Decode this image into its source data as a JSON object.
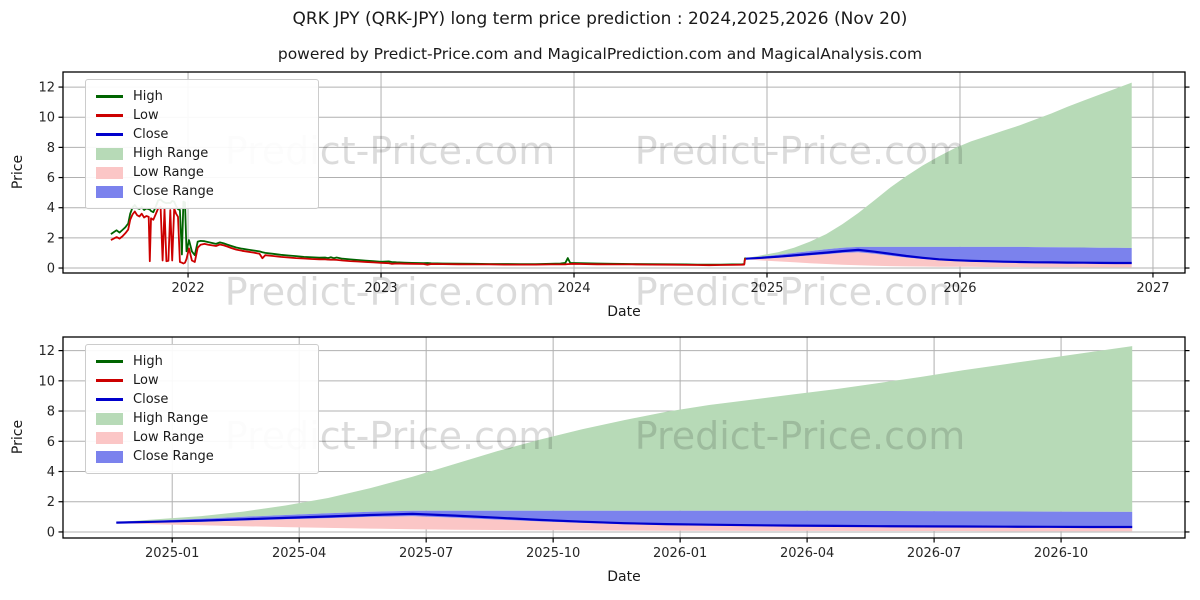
{
  "title": "QRK JPY (QRK-JPY) long term price prediction : 2024,2025,2026 (Nov 20)",
  "subtitle": "powered by Predict-Price.com and MagicalPrediction.com and MagicalAnalysis.com",
  "watermark": "Predict-Price.com",
  "legend": [
    "High",
    "Low",
    "Close",
    "High Range",
    "Low Range",
    "Close Range"
  ],
  "colors": {
    "high_line": "#006400",
    "low_line": "#cc0000",
    "close_line": "#0000cc",
    "high_range_fill": "#b7dab7",
    "low_range_fill": "#fbc6c6",
    "close_range_fill": "#7b82ed",
    "grid": "#b0b0b0",
    "frame": "#000000",
    "text": "#262626"
  },
  "chart_data": [
    {
      "type": "area",
      "name": "top-chart",
      "xlabel": "Date",
      "ylabel": "Price",
      "grid": true,
      "legend_position": "upper left",
      "xlim": [
        2021.352,
        2027.166
      ],
      "ylim": [
        -0.33,
        13.0
      ],
      "x_ticks": [
        {
          "v": 2022,
          "label": "2022"
        },
        {
          "v": 2023,
          "label": "2023"
        },
        {
          "v": 2024,
          "label": "2024"
        },
        {
          "v": 2025,
          "label": "2025"
        },
        {
          "v": 2026,
          "label": "2026"
        },
        {
          "v": 2027,
          "label": "2027"
        }
      ],
      "y_ticks": [
        0,
        2,
        4,
        6,
        8,
        10,
        12
      ],
      "series_used": [
        "history",
        "forecast"
      ]
    },
    {
      "type": "area",
      "name": "bottom-chart",
      "xlabel": "Date",
      "ylabel": "Price",
      "grid": true,
      "legend_position": "upper left",
      "xlim": [
        2024.785,
        2026.994
      ],
      "ylim": [
        -0.4,
        12.9
      ],
      "x_ticks": [
        {
          "v": 2025.0,
          "label": "2025-01"
        },
        {
          "v": 2025.25,
          "label": "2025-04"
        },
        {
          "v": 2025.5,
          "label": "2025-07"
        },
        {
          "v": 2025.75,
          "label": "2025-10"
        },
        {
          "v": 2026.0,
          "label": "2026-01"
        },
        {
          "v": 2026.25,
          "label": "2026-04"
        },
        {
          "v": 2026.5,
          "label": "2026-07"
        },
        {
          "v": 2026.75,
          "label": "2026-10"
        }
      ],
      "y_ticks": [
        0,
        2,
        4,
        6,
        8,
        10,
        12
      ],
      "series_used": [
        "forecast"
      ]
    }
  ],
  "forecast": {
    "x": [
      2024.89,
      2024.973,
      2025.057,
      2025.14,
      2025.223,
      2025.307,
      2025.39,
      2025.473,
      2025.557,
      2025.64,
      2025.723,
      2025.807,
      2025.89,
      2025.973,
      2026.057,
      2026.14,
      2026.223,
      2026.307,
      2026.39,
      2026.473,
      2026.557,
      2026.64,
      2026.723,
      2026.807,
      2026.89
    ],
    "close": [
      0.62,
      0.68,
      0.75,
      0.84,
      0.93,
      1.02,
      1.12,
      1.2,
      1.08,
      0.94,
      0.8,
      0.68,
      0.58,
      0.52,
      0.48,
      0.45,
      0.42,
      0.4,
      0.38,
      0.37,
      0.36,
      0.35,
      0.34,
      0.33,
      0.33
    ],
    "close_top": [
      0.62,
      0.76,
      0.88,
      1.0,
      1.12,
      1.24,
      1.34,
      1.4,
      1.4,
      1.4,
      1.4,
      1.4,
      1.4,
      1.4,
      1.4,
      1.4,
      1.4,
      1.4,
      1.39,
      1.38,
      1.37,
      1.36,
      1.35,
      1.34,
      1.33
    ],
    "close_bottom": [
      0.6,
      0.63,
      0.68,
      0.76,
      0.84,
      0.92,
      1.0,
      1.05,
      0.95,
      0.82,
      0.7,
      0.6,
      0.51,
      0.46,
      0.42,
      0.39,
      0.37,
      0.35,
      0.34,
      0.33,
      0.32,
      0.31,
      0.3,
      0.3,
      0.29
    ],
    "low_bottom": [
      0.58,
      0.5,
      0.44,
      0.38,
      0.32,
      0.27,
      0.22,
      0.18,
      0.15,
      0.13,
      0.11,
      0.1,
      0.09,
      0.08,
      0.08,
      0.07,
      0.07,
      0.07,
      0.06,
      0.06,
      0.06,
      0.05,
      0.05,
      0.05,
      0.05
    ],
    "high_top": [
      0.65,
      0.85,
      1.05,
      1.35,
      1.75,
      2.25,
      2.9,
      3.65,
      4.5,
      5.35,
      6.1,
      6.8,
      7.4,
      7.95,
      8.4,
      8.75,
      9.1,
      9.45,
      9.85,
      10.25,
      10.7,
      11.1,
      11.5,
      11.9,
      12.3
    ]
  },
  "history": {
    "columns": [
      "year",
      "low",
      "high"
    ],
    "points": [
      [
        2021.6,
        1.85,
        2.25
      ],
      [
        2021.615,
        1.95,
        2.38
      ],
      [
        2021.63,
        2.05,
        2.5
      ],
      [
        2021.645,
        1.95,
        2.35
      ],
      [
        2021.66,
        2.1,
        2.52
      ],
      [
        2021.675,
        2.3,
        2.7
      ],
      [
        2021.69,
        2.55,
        2.95
      ],
      [
        2021.7,
        3.2,
        3.6
      ],
      [
        2021.712,
        3.55,
        4.0
      ],
      [
        2021.724,
        3.75,
        4.18
      ],
      [
        2021.736,
        3.5,
        3.98
      ],
      [
        2021.748,
        3.42,
        3.92
      ],
      [
        2021.76,
        3.6,
        4.05
      ],
      [
        2021.772,
        3.35,
        3.85
      ],
      [
        2021.784,
        3.45,
        3.95
      ],
      [
        2021.796,
        3.4,
        3.9
      ],
      [
        2021.802,
        0.45,
        3.88
      ],
      [
        2021.808,
        3.3,
        3.78
      ],
      [
        2021.82,
        3.2,
        3.7
      ],
      [
        2021.832,
        3.55,
        4.05
      ],
      [
        2021.845,
        3.95,
        4.48
      ],
      [
        2021.858,
        4.05,
        4.55
      ],
      [
        2021.868,
        0.5,
        4.42
      ],
      [
        2021.878,
        3.9,
        4.35
      ],
      [
        2021.888,
        0.45,
        4.3
      ],
      [
        2021.898,
        0.48,
        4.32
      ],
      [
        2021.908,
        3.85,
        4.3
      ],
      [
        2021.918,
        0.5,
        4.45
      ],
      [
        2021.928,
        3.95,
        4.4
      ],
      [
        2021.938,
        3.6,
        4.1
      ],
      [
        2021.948,
        3.4,
        3.9
      ],
      [
        2021.958,
        0.4,
        3.85
      ],
      [
        2021.968,
        0.35,
        0.9
      ],
      [
        2021.976,
        0.3,
        4.4
      ],
      [
        2021.984,
        0.35,
        4.35
      ],
      [
        2021.992,
        0.6,
        1.1
      ],
      [
        2022.005,
        1.3,
        1.85
      ],
      [
        2022.02,
        0.5,
        1.1
      ],
      [
        2022.035,
        0.4,
        0.85
      ],
      [
        2022.05,
        1.35,
        1.75
      ],
      [
        2022.065,
        1.55,
        1.8
      ],
      [
        2022.085,
        1.6,
        1.78
      ],
      [
        2022.105,
        1.55,
        1.72
      ],
      [
        2022.125,
        1.5,
        1.66
      ],
      [
        2022.145,
        1.46,
        1.6
      ],
      [
        2022.165,
        1.56,
        1.7
      ],
      [
        2022.185,
        1.5,
        1.63
      ],
      [
        2022.205,
        1.42,
        1.55
      ],
      [
        2022.225,
        1.32,
        1.46
      ],
      [
        2022.25,
        1.22,
        1.36
      ],
      [
        2022.28,
        1.14,
        1.28
      ],
      [
        2022.31,
        1.08,
        1.22
      ],
      [
        2022.34,
        1.02,
        1.16
      ],
      [
        2022.37,
        0.95,
        1.1
      ],
      [
        2022.385,
        0.65,
        1.05
      ],
      [
        2022.4,
        0.85,
        1.0
      ],
      [
        2022.44,
        0.8,
        0.94
      ],
      [
        2022.48,
        0.74,
        0.88
      ],
      [
        2022.52,
        0.7,
        0.83
      ],
      [
        2022.56,
        0.66,
        0.79
      ],
      [
        2022.6,
        0.63,
        0.74
      ],
      [
        2022.64,
        0.6,
        0.71
      ],
      [
        2022.68,
        0.58,
        0.69
      ],
      [
        2022.71,
        0.57,
        0.7
      ],
      [
        2022.725,
        0.56,
        0.66
      ],
      [
        2022.74,
        0.55,
        0.72
      ],
      [
        2022.755,
        0.55,
        0.65
      ],
      [
        2022.77,
        0.54,
        0.7
      ],
      [
        2022.8,
        0.5,
        0.62
      ],
      [
        2022.84,
        0.46,
        0.57
      ],
      [
        2022.88,
        0.43,
        0.53
      ],
      [
        2022.92,
        0.4,
        0.49
      ],
      [
        2022.96,
        0.37,
        0.45
      ],
      [
        2023.0,
        0.34,
        0.41
      ],
      [
        2023.04,
        0.32,
        0.44
      ],
      [
        2023.055,
        0.28,
        0.4
      ],
      [
        2023.08,
        0.3,
        0.38
      ],
      [
        2023.12,
        0.29,
        0.36
      ],
      [
        2023.16,
        0.28,
        0.34
      ],
      [
        2023.22,
        0.27,
        0.32
      ],
      [
        2023.24,
        0.22,
        0.33
      ],
      [
        2023.26,
        0.27,
        0.31
      ],
      [
        2023.32,
        0.26,
        0.3
      ],
      [
        2023.4,
        0.25,
        0.29
      ],
      [
        2023.48,
        0.24,
        0.28
      ],
      [
        2023.56,
        0.24,
        0.27
      ],
      [
        2023.64,
        0.23,
        0.27
      ],
      [
        2023.72,
        0.23,
        0.26
      ],
      [
        2023.8,
        0.23,
        0.26
      ],
      [
        2023.88,
        0.24,
        0.28
      ],
      [
        2023.93,
        0.24,
        0.3
      ],
      [
        2023.955,
        0.25,
        0.34
      ],
      [
        2023.968,
        0.26,
        0.66
      ],
      [
        2023.98,
        0.27,
        0.34
      ],
      [
        2024.0,
        0.28,
        0.33
      ],
      [
        2024.06,
        0.26,
        0.31
      ],
      [
        2024.12,
        0.25,
        0.3
      ],
      [
        2024.2,
        0.24,
        0.28
      ],
      [
        2024.3,
        0.24,
        0.27
      ],
      [
        2024.4,
        0.23,
        0.26
      ],
      [
        2024.5,
        0.22,
        0.25
      ],
      [
        2024.58,
        0.21,
        0.24
      ],
      [
        2024.64,
        0.2,
        0.23
      ],
      [
        2024.7,
        0.19,
        0.22
      ],
      [
        2024.76,
        0.2,
        0.23
      ],
      [
        2024.82,
        0.21,
        0.24
      ],
      [
        2024.87,
        0.22,
        0.25
      ],
      [
        2024.882,
        0.23,
        0.26
      ],
      [
        2024.886,
        0.6,
        0.64
      ],
      [
        2024.89,
        0.62,
        0.66
      ]
    ]
  }
}
